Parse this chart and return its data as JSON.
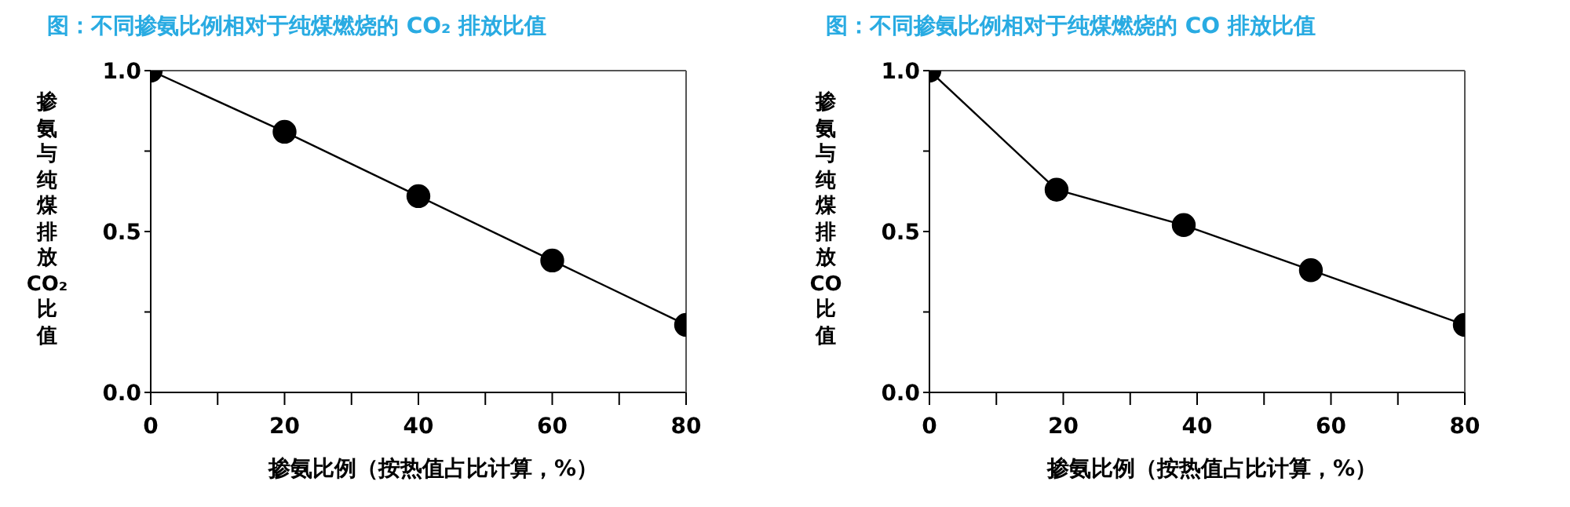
{
  "chart_data": [
    {
      "type": "line",
      "title": "图：不同掺氨比例相对于纯煤燃烧的 CO₂ 排放比值",
      "xlabel": "掺氨比例（按热值占比计算，%）",
      "ylabel": "掺氨与纯煤排放CO₂比值",
      "x": [
        0,
        20,
        40,
        60,
        80
      ],
      "series": [
        {
          "color": "#000000",
          "values": [
            1.0,
            0.81,
            0.61,
            0.41,
            0.21
          ]
        }
      ],
      "xlim": [
        0,
        80
      ],
      "xticks": [
        0,
        {
          "value": 10,
          "label": null
        },
        20,
        {
          "value": 30,
          "label": null
        },
        40,
        {
          "value": 50,
          "label": null
        },
        60,
        {
          "value": 70,
          "label": null
        },
        80
      ],
      "ylim": [
        0,
        1
      ],
      "yticks": [
        {
          "value": 0,
          "label": "0.0"
        },
        {
          "value": 0.25,
          "label": null
        },
        {
          "value": 0.5,
          "label": "0.5"
        },
        {
          "value": 0.75,
          "label": null
        },
        {
          "value": 1,
          "label": "1.0"
        }
      ],
      "grid": false,
      "legend": false,
      "marker": "circle",
      "line_style": "solid"
    },
    {
      "type": "line",
      "title": "图：不同掺氨比例相对于纯煤燃烧的 CO 排放比值",
      "xlabel": "掺氨比例（按热值占比计算，%）",
      "ylabel": "掺氨与纯煤排放CO比值",
      "x": [
        0,
        19,
        38,
        57,
        80
      ],
      "series": [
        {
          "color": "#000000",
          "values": [
            1.0,
            0.63,
            0.52,
            0.38,
            0.21
          ]
        }
      ],
      "xlim": [
        0,
        80
      ],
      "xticks": [
        0,
        {
          "value": 10,
          "label": null
        },
        20,
        {
          "value": 30,
          "label": null
        },
        40,
        {
          "value": 50,
          "label": null
        },
        60,
        {
          "value": 70,
          "label": null
        },
        80
      ],
      "ylim": [
        0,
        1
      ],
      "yticks": [
        {
          "value": 0,
          "label": "0.0"
        },
        {
          "value": 0.25,
          "label": null
        },
        {
          "value": 0.5,
          "label": "0.5"
        },
        {
          "value": 0.75,
          "label": null
        },
        {
          "value": 1,
          "label": "1.0"
        }
      ],
      "grid": false,
      "legend": false,
      "marker": "circle",
      "line_style": "solid"
    }
  ]
}
